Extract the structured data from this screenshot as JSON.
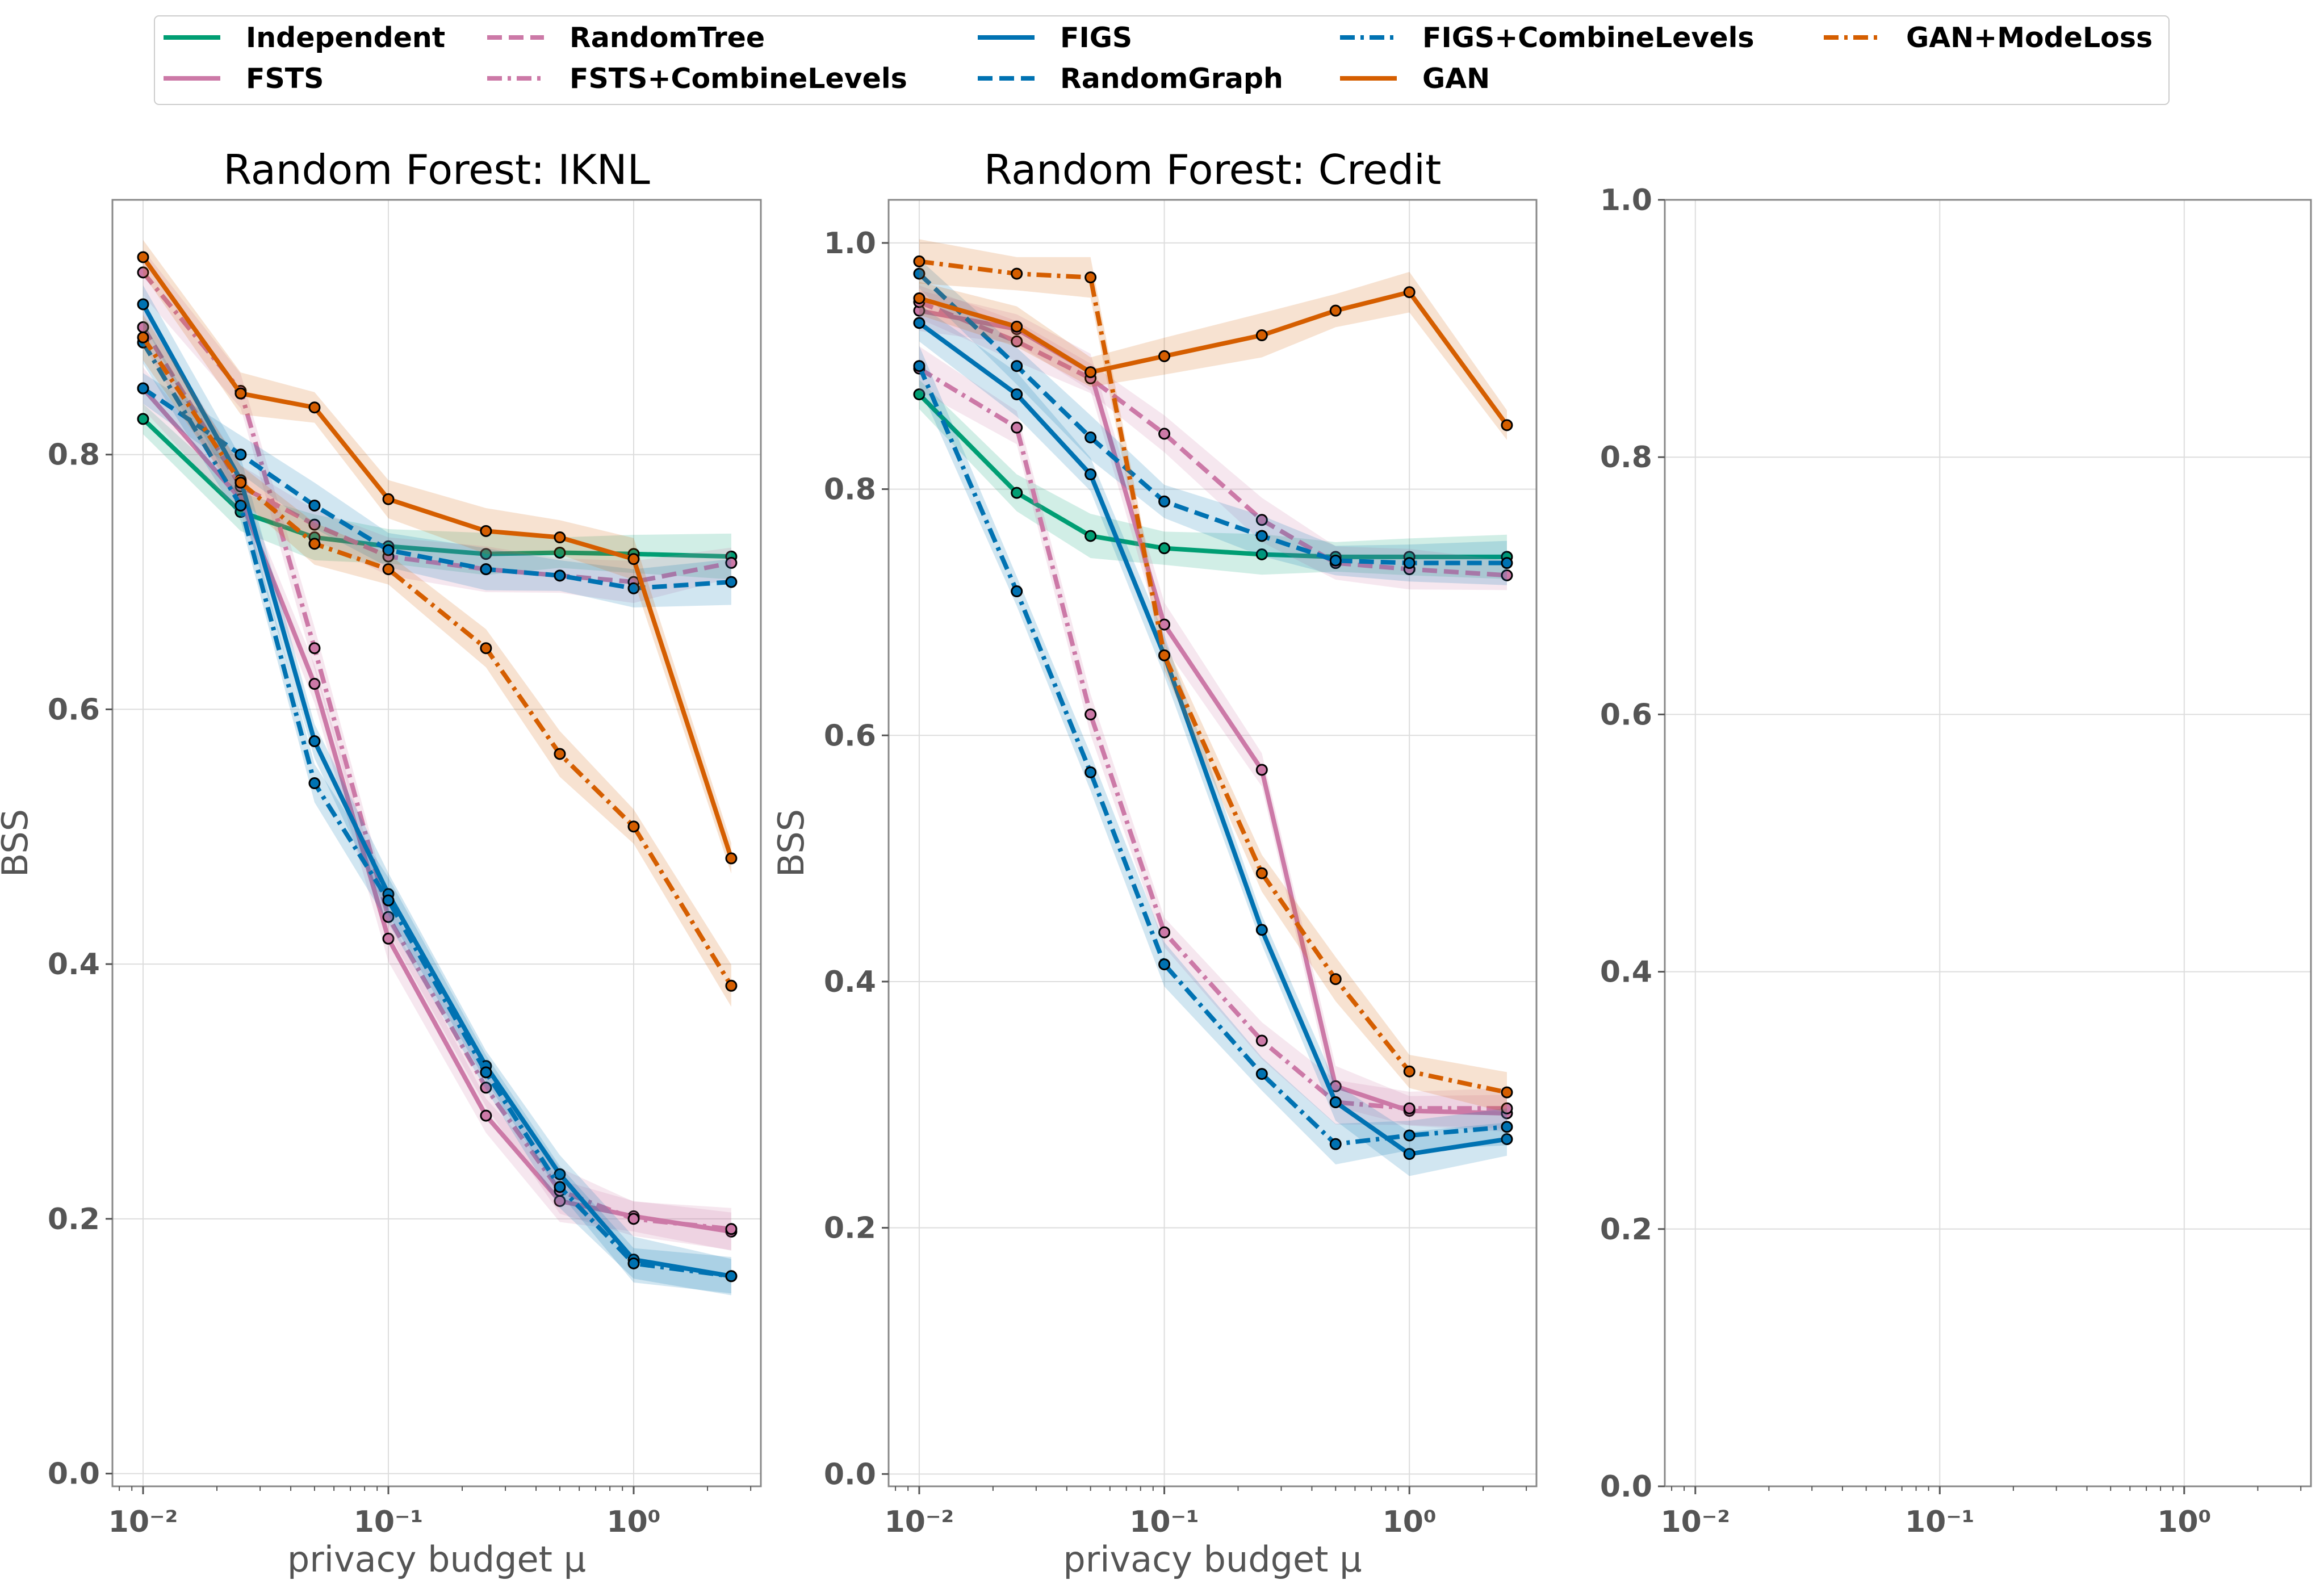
{
  "legend": [
    {
      "name": "Independent",
      "color": "#009e73",
      "dash": "solid"
    },
    {
      "name": "FSTS",
      "color": "#cc79a7",
      "dash": "solid"
    },
    {
      "name": "RandomTree",
      "color": "#cc79a7",
      "dash": "dashed"
    },
    {
      "name": "FSTS+CombineLevels",
      "color": "#cc79a7",
      "dash": "dashdot"
    },
    {
      "name": "FIGS",
      "color": "#0072b2",
      "dash": "solid"
    },
    {
      "name": "RandomGraph",
      "color": "#0072b2",
      "dash": "dashed"
    },
    {
      "name": "FIGS+CombineLevels",
      "color": "#0072b2",
      "dash": "dashdot"
    },
    {
      "name": "GAN",
      "color": "#d55e00",
      "dash": "solid"
    },
    {
      "name": "GAN+ModeLoss",
      "color": "#d55e00",
      "dash": "dashdot"
    }
  ],
  "chart_data": [
    {
      "type": "line",
      "title": "Random Forest: IKNL",
      "xlabel": "privacy budget μ",
      "ylabel": "BSS",
      "xscale": "log",
      "xlim": [
        0.0075,
        3.3
      ],
      "ylim": [
        -0.01,
        1.0
      ],
      "yticks": [
        "0.0",
        "0.2",
        "0.4",
        "0.6",
        "0.8"
      ],
      "xticks": [
        "10⁻²",
        "10⁻¹",
        "10⁰"
      ],
      "grid": true,
      "x": [
        0.01,
        0.025,
        0.05,
        0.1,
        0.25,
        0.5,
        1.0,
        2.5
      ],
      "series": [
        {
          "name": "Independent",
          "values": [
            0.828,
            0.755,
            0.735,
            0.728,
            0.722,
            0.723,
            0.722,
            0.72
          ]
        },
        {
          "name": "FSTS",
          "values": [
            0.852,
            0.765,
            0.62,
            0.42,
            0.281,
            0.214,
            0.202,
            0.19
          ]
        },
        {
          "name": "RandomTree",
          "values": [
            0.9,
            0.775,
            0.745,
            0.72,
            0.71,
            0.705,
            0.7,
            0.715
          ]
        },
        {
          "name": "FSTS+CombineLevels",
          "values": [
            0.943,
            0.85,
            0.648,
            0.437,
            0.303,
            0.222,
            0.2,
            0.192
          ]
        },
        {
          "name": "FIGS",
          "values": [
            0.918,
            0.78,
            0.575,
            0.455,
            0.32,
            0.235,
            0.168,
            0.155
          ]
        },
        {
          "name": "RandomGraph",
          "values": [
            0.852,
            0.8,
            0.76,
            0.725,
            0.71,
            0.705,
            0.695,
            0.7
          ]
        },
        {
          "name": "FIGS+CombineLevels",
          "values": [
            0.888,
            0.76,
            0.542,
            0.45,
            0.315,
            0.225,
            0.165,
            0.155
          ]
        },
        {
          "name": "GAN",
          "values": [
            0.955,
            0.848,
            0.837,
            0.765,
            0.74,
            0.735,
            0.718,
            0.483
          ]
        },
        {
          "name": "GAN+ModeLoss",
          "values": [
            0.892,
            0.778,
            0.73,
            0.71,
            0.648,
            0.565,
            0.508,
            0.383
          ]
        }
      ]
    },
    {
      "type": "line",
      "title": "Random Forest: Credit",
      "xlabel": "privacy budget μ",
      "ylabel": "BSS",
      "xscale": "log",
      "xlim": [
        0.0075,
        3.3
      ],
      "ylim": [
        -0.01,
        1.035
      ],
      "yticks": [
        "0.0",
        "0.2",
        "0.4",
        "0.6",
        "0.8",
        "1.0"
      ],
      "xticks": [
        "10⁻²",
        "10⁻¹",
        "10⁰"
      ],
      "grid": true,
      "x": [
        0.01,
        0.025,
        0.05,
        0.1,
        0.25,
        0.5,
        1.0,
        2.5
      ],
      "series": [
        {
          "name": "Independent",
          "values": [
            0.877,
            0.797,
            0.762,
            0.752,
            0.747,
            0.745,
            0.745,
            0.745
          ]
        },
        {
          "name": "FSTS",
          "values": [
            0.945,
            0.93,
            0.895,
            0.69,
            0.572,
            0.315,
            0.295,
            0.293
          ]
        },
        {
          "name": "RandomTree",
          "values": [
            0.952,
            0.92,
            0.89,
            0.845,
            0.775,
            0.74,
            0.735,
            0.73
          ]
        },
        {
          "name": "FSTS+CombineLevels",
          "values": [
            0.898,
            0.85,
            0.617,
            0.44,
            0.352,
            0.302,
            0.297,
            0.297
          ]
        },
        {
          "name": "FIGS",
          "values": [
            0.935,
            0.877,
            0.812,
            0.665,
            0.442,
            0.302,
            0.26,
            0.272
          ]
        },
        {
          "name": "RandomGraph",
          "values": [
            0.975,
            0.9,
            0.842,
            0.79,
            0.762,
            0.742,
            0.74,
            0.74
          ]
        },
        {
          "name": "FIGS+CombineLevels",
          "values": [
            0.9,
            0.717,
            0.57,
            0.414,
            0.325,
            0.268,
            0.275,
            0.282
          ]
        },
        {
          "name": "GAN",
          "values": [
            0.955,
            0.932,
            0.895,
            0.908,
            0.925,
            0.945,
            0.96,
            0.852
          ]
        },
        {
          "name": "GAN+ModeLoss",
          "values": [
            0.985,
            0.975,
            0.972,
            0.665,
            0.488,
            0.402,
            0.327,
            0.31
          ]
        }
      ]
    },
    {
      "type": "line",
      "title": "",
      "xlabel": "",
      "ylabel": "",
      "xscale": "log",
      "xlim": [
        0.0075,
        3.3
      ],
      "ylim": [
        0.0,
        1.0
      ],
      "yticks": [
        "0.0",
        "0.2",
        "0.4",
        "0.6",
        "0.8",
        "1.0"
      ],
      "xticks": [
        "10⁻²",
        "10⁻¹",
        "10⁰"
      ],
      "grid": true,
      "x": [],
      "series": []
    }
  ]
}
